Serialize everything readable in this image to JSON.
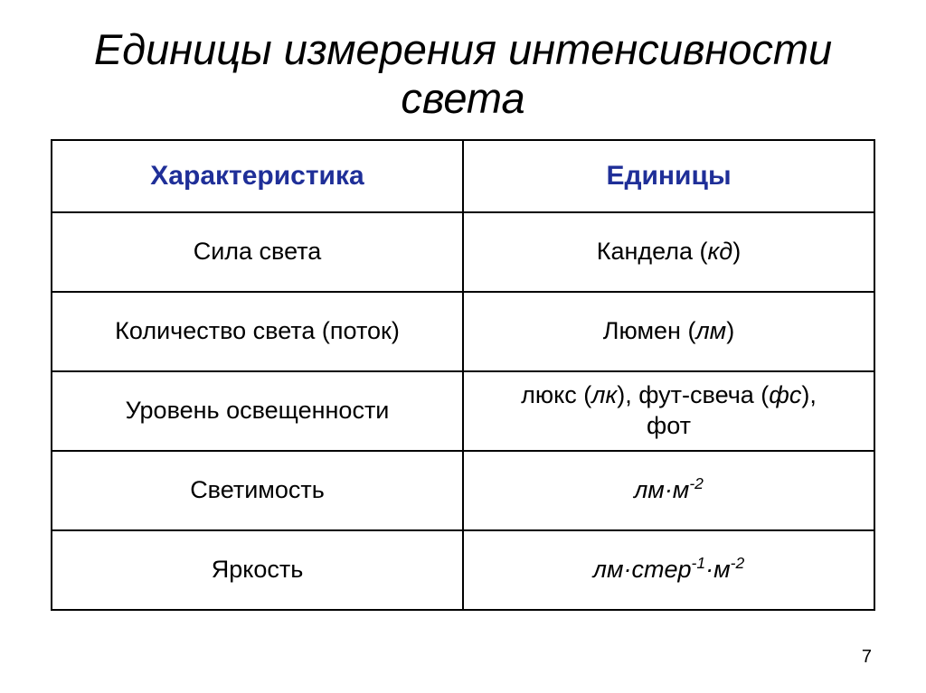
{
  "title": "Единицы измерения интенсивности света",
  "page_number": "7",
  "table": {
    "type": "table",
    "header_color": "#1f2f98",
    "border_color": "#000000",
    "columns": [
      "Характеристика",
      "Единицы"
    ],
    "rows": [
      {
        "char": "Сила света",
        "unit_html": "Кандела (<span class='ital'>кд</span>)"
      },
      {
        "char": "Количество света (поток)",
        "unit_html": "Люмен (<span class='ital'>лм</span>)"
      },
      {
        "char": "Уровень освещенности",
        "unit_html": "люкс (<span class='ital'>лк</span>), фут-свеча (<span class='ital'>фс</span>),<br>фот"
      },
      {
        "char": "Светимость",
        "unit_html": "<span class='ital'>лм·м<sup>-2</sup></span>"
      },
      {
        "char": "Яркость",
        "unit_html": "<span class='ital'>лм·стер<sup>-1</sup>·м<sup>-2</sup></span>"
      }
    ]
  }
}
